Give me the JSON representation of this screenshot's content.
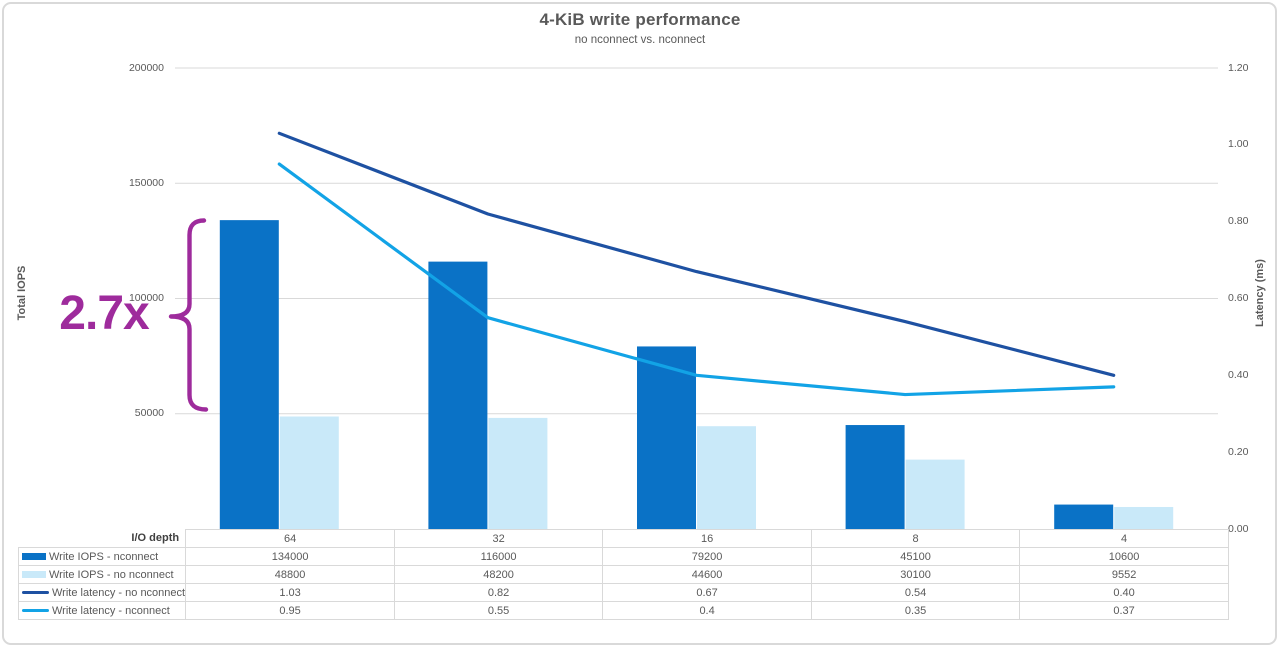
{
  "chart_data": {
    "type": "combo-bar-line",
    "title": "4-KiB write performance",
    "subtitle": "no nconnect vs. nconnect",
    "category_axis_label": "I/O depth",
    "categories": [
      "64",
      "32",
      "16",
      "8",
      "4"
    ],
    "y_left": {
      "label": "Total IOPS",
      "min": 0,
      "max": 200000,
      "ticks": [
        200000,
        150000,
        100000,
        50000
      ],
      "grid": true
    },
    "y_right": {
      "label": "Latency (ms)",
      "min": 0,
      "max": 1.2,
      "tick_labels": [
        "1.20",
        "1.00",
        "0.80",
        "0.60",
        "0.40",
        "0.20",
        "0.00"
      ]
    },
    "series": [
      {
        "name": "Write IOPS - nconnect",
        "type": "bar",
        "axis": "left",
        "color": "#0a72c6",
        "values": [
          134000,
          116000,
          79200,
          45100,
          10600
        ],
        "display": [
          "134000",
          "116000",
          "79200",
          "45100",
          "10600"
        ]
      },
      {
        "name": "Write IOPS - no nconnect",
        "type": "bar",
        "axis": "left",
        "color": "#c9e9f9",
        "values": [
          48800,
          48200,
          44600,
          30100,
          9552
        ],
        "display": [
          "48800",
          "48200",
          "44600",
          "30100",
          "9552"
        ]
      },
      {
        "name": "Write latency - no nconnect",
        "type": "line",
        "axis": "right",
        "color": "#1e51a2",
        "values": [
          1.03,
          0.82,
          0.67,
          0.54,
          0.4
        ],
        "display": [
          "1.03",
          "0.82",
          "0.67",
          "0.54",
          "0.40"
        ]
      },
      {
        "name": "Write latency - nconnect",
        "type": "line",
        "axis": "right",
        "color": "#12a3e6",
        "values": [
          0.95,
          0.55,
          0.4,
          0.35,
          0.37
        ],
        "display": [
          "0.95",
          "0.55",
          "0.4",
          "0.35",
          "0.37"
        ]
      }
    ],
    "annotation": {
      "text": "2.7x",
      "color": "#9e2b9c"
    },
    "gridline_color": "#d9d9d9",
    "legend_position": "table-rows-left",
    "axis_range_left": [
      0,
      200000
    ],
    "axis_range_right": [
      0,
      1.2
    ]
  }
}
